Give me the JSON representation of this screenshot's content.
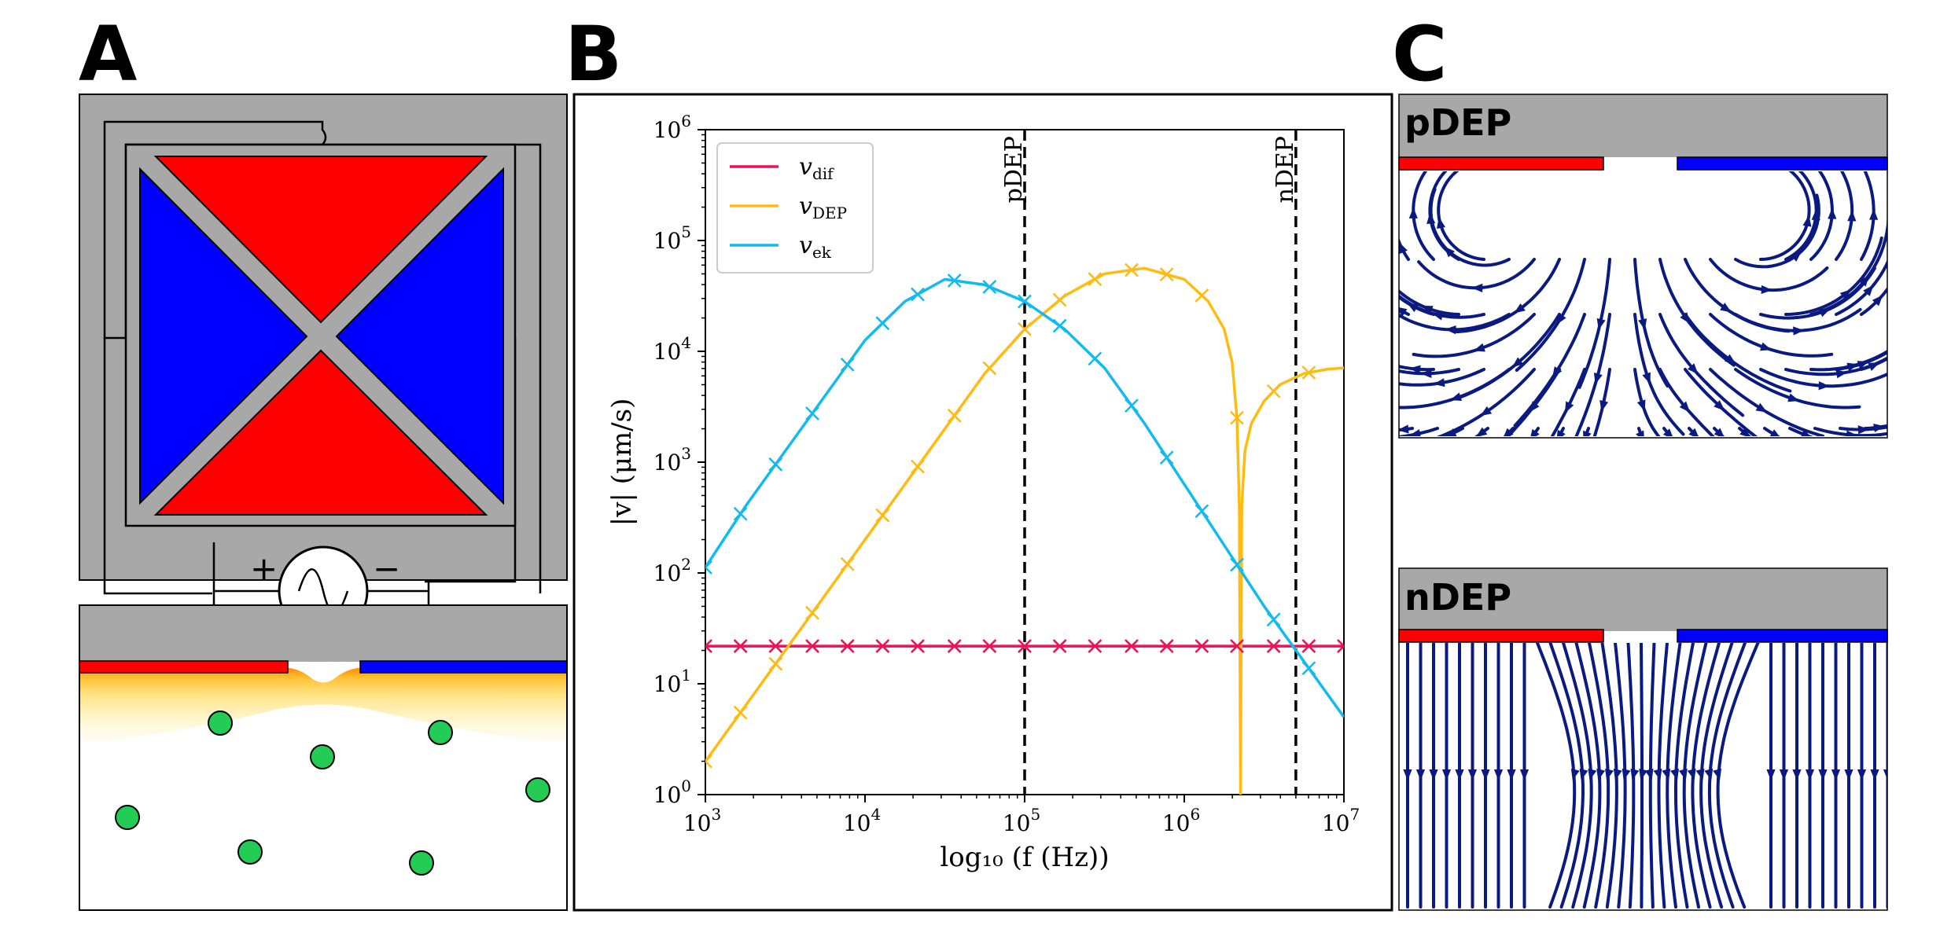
{
  "panels": {
    "a": {
      "letter": "A",
      "plus": "+",
      "minus": "−"
    },
    "b": {
      "letter": "B"
    },
    "c": {
      "letter": "C",
      "top_title": "pDEP",
      "bottom_title": "nDEP"
    }
  },
  "colors": {
    "red": "#ff0000",
    "blue": "#0000ff",
    "gray": "#a8a8a8",
    "particle": "#22cc55",
    "dif": "#ee1155",
    "dep": "#ffbb11",
    "ek": "#11bbee",
    "stream": "#0b1a80"
  },
  "chart_data": {
    "type": "line",
    "xscale": "log",
    "yscale": "log",
    "xlim": [
      1000,
      10000000
    ],
    "ylim": [
      1,
      1000000
    ],
    "xlabel": "log₁₀ (f (Hz))",
    "ylabel": "|v| (μm/s)",
    "xticks": [
      {
        "base": "10",
        "exp": "3"
      },
      {
        "base": "10",
        "exp": "4"
      },
      {
        "base": "10",
        "exp": "5"
      },
      {
        "base": "10",
        "exp": "6"
      },
      {
        "base": "10",
        "exp": "7"
      }
    ],
    "yticks": [
      {
        "base": "10",
        "exp": "0"
      },
      {
        "base": "10",
        "exp": "1"
      },
      {
        "base": "10",
        "exp": "2"
      },
      {
        "base": "10",
        "exp": "3"
      },
      {
        "base": "10",
        "exp": "4"
      },
      {
        "base": "10",
        "exp": "5"
      },
      {
        "base": "10",
        "exp": "6"
      }
    ],
    "vlines": [
      {
        "x": 100000,
        "label": "pDEP"
      },
      {
        "x": 5000000,
        "label": "nDEP"
      }
    ],
    "legend": [
      {
        "sym": "v",
        "sub": "dif",
        "key": "dif"
      },
      {
        "sym": "v",
        "sub": "DEP",
        "key": "dep"
      },
      {
        "sym": "v",
        "sub": "ek",
        "key": "ek"
      }
    ],
    "series": [
      {
        "name": "dif",
        "logx": [
          3,
          3.25,
          3.5,
          3.75,
          4,
          4.25,
          4.5,
          4.75,
          5,
          5.25,
          5.5,
          5.75,
          6,
          6.25,
          6.5,
          6.75,
          7
        ],
        "logy": [
          1.34,
          1.34,
          1.34,
          1.34,
          1.34,
          1.34,
          1.34,
          1.34,
          1.34,
          1.34,
          1.34,
          1.34,
          1.34,
          1.34,
          1.34,
          1.34,
          1.34
        ]
      },
      {
        "name": "dep",
        "logx": [
          3.0,
          3.25,
          3.5,
          3.75,
          4.0,
          4.25,
          4.5,
          4.75,
          5.0,
          5.25,
          5.5,
          5.75,
          6.0,
          6.15,
          6.25,
          6.3,
          6.33,
          6.345,
          6.352,
          6.36,
          6.38,
          6.42,
          6.5,
          6.6,
          6.75,
          6.9,
          7.0
        ],
        "logy": [
          0.3,
          0.8,
          1.3,
          1.8,
          2.3,
          2.8,
          3.3,
          3.8,
          4.2,
          4.5,
          4.7,
          4.75,
          4.65,
          4.45,
          4.2,
          3.9,
          3.4,
          2.6,
          0.0,
          2.6,
          3.1,
          3.35,
          3.55,
          3.7,
          3.8,
          3.84,
          3.85
        ]
      },
      {
        "name": "ek",
        "logx": [
          3.0,
          3.25,
          3.5,
          3.75,
          4.0,
          4.25,
          4.5,
          4.75,
          5.0,
          5.25,
          5.5,
          5.75,
          6.0,
          6.25,
          6.5,
          6.75,
          7.0
        ],
        "logy": [
          2.05,
          2.6,
          3.1,
          3.6,
          4.1,
          4.45,
          4.65,
          4.6,
          4.45,
          4.2,
          3.85,
          3.35,
          2.8,
          2.25,
          1.7,
          1.2,
          0.7
        ]
      }
    ],
    "markers": [
      {
        "name": "dif",
        "logx": [
          3.0,
          3.22,
          3.44,
          3.67,
          3.89,
          4.11,
          4.33,
          4.56,
          4.78,
          5.0,
          5.22,
          5.44,
          5.67,
          5.89,
          6.11,
          6.33,
          6.56,
          6.78,
          7.0
        ]
      },
      {
        "name": "dep",
        "logx": [
          3.0,
          3.22,
          3.44,
          3.67,
          3.89,
          4.11,
          4.33,
          4.56,
          4.78,
          5.0,
          5.22,
          5.44,
          5.67,
          5.89,
          6.11,
          6.33,
          6.56,
          6.78
        ]
      },
      {
        "name": "ek",
        "logx": [
          3.0,
          3.22,
          3.44,
          3.67,
          3.89,
          4.11,
          4.33,
          4.56,
          4.78,
          5.0,
          5.22,
          5.44,
          5.67,
          5.89,
          6.11,
          6.33,
          6.56,
          6.78
        ]
      }
    ]
  }
}
